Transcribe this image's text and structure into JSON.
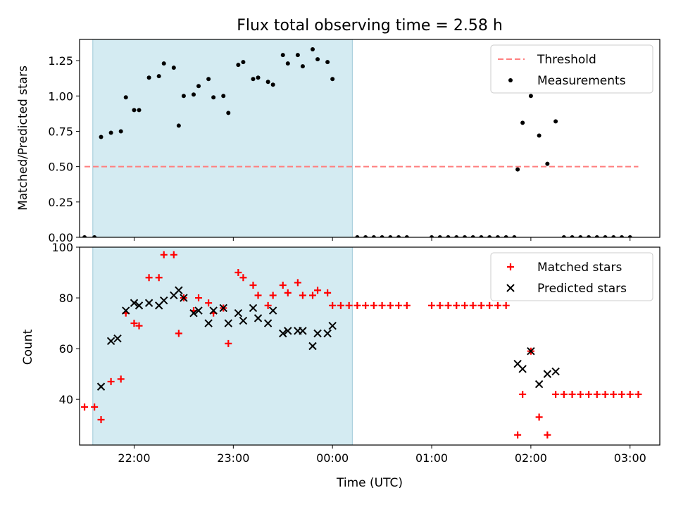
{
  "title": "Flux total observing time = 2.58 h",
  "xlabel": "Time (UTC)",
  "xticks": [
    "22:00",
    "23:00",
    "00:00",
    "01:00",
    "02:00",
    "03:00"
  ],
  "chart_data": [
    {
      "type": "scatter",
      "ylabel": "Matched/Predicted stars",
      "ylim": [
        0,
        1.4
      ],
      "xlim": [
        "21:27",
        "03:18"
      ],
      "yticks": [
        "0.00",
        "0.25",
        "0.50",
        "0.75",
        "1.00",
        "1.25"
      ],
      "shaded_span": [
        "21:35",
        "00:12"
      ],
      "threshold": {
        "name": "Threshold",
        "value": 0.5,
        "color": "#ff7f7f",
        "style": "dashed"
      },
      "legend": [
        "Threshold",
        "Measurements"
      ],
      "legend_position": "upper right",
      "series": [
        {
          "name": "Measurements",
          "color": "#000000",
          "points": [
            [
              "21:30",
              0
            ],
            [
              "21:36",
              0
            ],
            [
              "21:40",
              0.71
            ],
            [
              "21:46",
              0.74
            ],
            [
              "21:52",
              0.75
            ],
            [
              "21:55",
              0.99
            ],
            [
              "22:00",
              0.9
            ],
            [
              "22:03",
              0.9
            ],
            [
              "22:09",
              1.13
            ],
            [
              "22:15",
              1.14
            ],
            [
              "22:18",
              1.23
            ],
            [
              "22:24",
              1.2
            ],
            [
              "22:27",
              0.79
            ],
            [
              "22:30",
              1.0
            ],
            [
              "22:36",
              1.01
            ],
            [
              "22:39",
              1.07
            ],
            [
              "22:45",
              1.12
            ],
            [
              "22:48",
              0.99
            ],
            [
              "22:54",
              1.0
            ],
            [
              "22:57",
              0.88
            ],
            [
              "23:03",
              1.22
            ],
            [
              "23:06",
              1.24
            ],
            [
              "23:12",
              1.12
            ],
            [
              "23:15",
              1.13
            ],
            [
              "23:21",
              1.1
            ],
            [
              "23:24",
              1.08
            ],
            [
              "23:30",
              1.29
            ],
            [
              "23:33",
              1.23
            ],
            [
              "23:39",
              1.29
            ],
            [
              "23:42",
              1.21
            ],
            [
              "23:48",
              1.33
            ],
            [
              "23:51",
              1.26
            ],
            [
              "23:57",
              1.24
            ],
            [
              "00:00",
              1.12
            ],
            [
              "00:15",
              0
            ],
            [
              "00:20",
              0
            ],
            [
              "00:25",
              0
            ],
            [
              "00:30",
              0
            ],
            [
              "00:35",
              0
            ],
            [
              "00:40",
              0
            ],
            [
              "00:45",
              0
            ],
            [
              "01:00",
              0
            ],
            [
              "01:05",
              0
            ],
            [
              "01:10",
              0
            ],
            [
              "01:15",
              0
            ],
            [
              "01:20",
              0
            ],
            [
              "01:25",
              0
            ],
            [
              "01:30",
              0
            ],
            [
              "01:35",
              0
            ],
            [
              "01:40",
              0
            ],
            [
              "01:45",
              0
            ],
            [
              "01:50",
              0
            ],
            [
              "01:52",
              0.48
            ],
            [
              "01:55",
              0.81
            ],
            [
              "02:00",
              1.0
            ],
            [
              "02:05",
              0.72
            ],
            [
              "02:10",
              0.52
            ],
            [
              "02:15",
              0.82
            ],
            [
              "02:20",
              0
            ],
            [
              "02:25",
              0
            ],
            [
              "02:30",
              0
            ],
            [
              "02:35",
              0
            ],
            [
              "02:40",
              0
            ],
            [
              "02:45",
              0
            ],
            [
              "02:50",
              0
            ],
            [
              "02:55",
              0
            ],
            [
              "03:00",
              0
            ]
          ]
        }
      ]
    },
    {
      "type": "scatter",
      "ylabel": "Count",
      "ylim": [
        22,
        100
      ],
      "xlim": [
        "21:27",
        "03:18"
      ],
      "yticks": [
        "40",
        "60",
        "80",
        "100"
      ],
      "shaded_span": [
        "21:35",
        "00:12"
      ],
      "legend": [
        "Matched stars",
        "Predicted stars"
      ],
      "legend_position": "upper right",
      "series": [
        {
          "name": "Matched stars",
          "marker": "+",
          "color": "#ff0000",
          "points": [
            [
              "21:30",
              37
            ],
            [
              "21:36",
              37
            ],
            [
              "21:40",
              32
            ],
            [
              "21:46",
              47
            ],
            [
              "21:52",
              48
            ],
            [
              "21:55",
              74
            ],
            [
              "22:00",
              70
            ],
            [
              "22:03",
              69
            ],
            [
              "22:09",
              88
            ],
            [
              "22:15",
              88
            ],
            [
              "22:18",
              97
            ],
            [
              "22:24",
              97
            ],
            [
              "22:27",
              66
            ],
            [
              "22:30",
              80
            ],
            [
              "22:36",
              75
            ],
            [
              "22:39",
              80
            ],
            [
              "22:45",
              78
            ],
            [
              "22:48",
              74
            ],
            [
              "22:54",
              76
            ],
            [
              "22:57",
              62
            ],
            [
              "23:03",
              90
            ],
            [
              "23:06",
              88
            ],
            [
              "23:12",
              85
            ],
            [
              "23:15",
              81
            ],
            [
              "23:21",
              77
            ],
            [
              "23:24",
              81
            ],
            [
              "23:30",
              85
            ],
            [
              "23:33",
              82
            ],
            [
              "23:39",
              86
            ],
            [
              "23:42",
              81
            ],
            [
              "23:48",
              81
            ],
            [
              "23:51",
              83
            ],
            [
              "23:57",
              82
            ],
            [
              "00:00",
              77
            ],
            [
              "00:05",
              77
            ],
            [
              "00:10",
              77
            ],
            [
              "00:15",
              77
            ],
            [
              "00:20",
              77
            ],
            [
              "00:25",
              77
            ],
            [
              "00:30",
              77
            ],
            [
              "00:35",
              77
            ],
            [
              "00:40",
              77
            ],
            [
              "00:45",
              77
            ],
            [
              "01:00",
              77
            ],
            [
              "01:05",
              77
            ],
            [
              "01:10",
              77
            ],
            [
              "01:15",
              77
            ],
            [
              "01:20",
              77
            ],
            [
              "01:25",
              77
            ],
            [
              "01:30",
              77
            ],
            [
              "01:35",
              77
            ],
            [
              "01:40",
              77
            ],
            [
              "01:45",
              77
            ],
            [
              "01:52",
              26
            ],
            [
              "01:55",
              42
            ],
            [
              "02:00",
              59
            ],
            [
              "02:05",
              33
            ],
            [
              "02:10",
              26
            ],
            [
              "02:15",
              42
            ],
            [
              "02:20",
              42
            ],
            [
              "02:25",
              42
            ],
            [
              "02:30",
              42
            ],
            [
              "02:35",
              42
            ],
            [
              "02:40",
              42
            ],
            [
              "02:45",
              42
            ],
            [
              "02:50",
              42
            ],
            [
              "02:55",
              42
            ],
            [
              "03:00",
              42
            ],
            [
              "03:05",
              42
            ]
          ]
        },
        {
          "name": "Predicted stars",
          "marker": "x",
          "color": "#000000",
          "points": [
            [
              "21:40",
              45
            ],
            [
              "21:46",
              63
            ],
            [
              "21:50",
              64
            ],
            [
              "21:55",
              75
            ],
            [
              "22:00",
              78
            ],
            [
              "22:03",
              77
            ],
            [
              "22:09",
              78
            ],
            [
              "22:15",
              77
            ],
            [
              "22:18",
              79
            ],
            [
              "22:24",
              81
            ],
            [
              "22:27",
              83
            ],
            [
              "22:30",
              80
            ],
            [
              "22:36",
              74
            ],
            [
              "22:39",
              75
            ],
            [
              "22:45",
              70
            ],
            [
              "22:48",
              75
            ],
            [
              "22:54",
              76
            ],
            [
              "22:57",
              70
            ],
            [
              "23:03",
              74
            ],
            [
              "23:06",
              71
            ],
            [
              "23:12",
              76
            ],
            [
              "23:15",
              72
            ],
            [
              "23:21",
              70
            ],
            [
              "23:24",
              75
            ],
            [
              "23:30",
              66
            ],
            [
              "23:33",
              67
            ],
            [
              "23:39",
              67
            ],
            [
              "23:42",
              67
            ],
            [
              "23:48",
              61
            ],
            [
              "23:51",
              66
            ],
            [
              "23:57",
              66
            ],
            [
              "00:00",
              69
            ],
            [
              "01:52",
              54
            ],
            [
              "01:55",
              52
            ],
            [
              "02:00",
              59
            ],
            [
              "02:05",
              46
            ],
            [
              "02:10",
              50
            ],
            [
              "02:15",
              51
            ]
          ]
        }
      ]
    }
  ]
}
